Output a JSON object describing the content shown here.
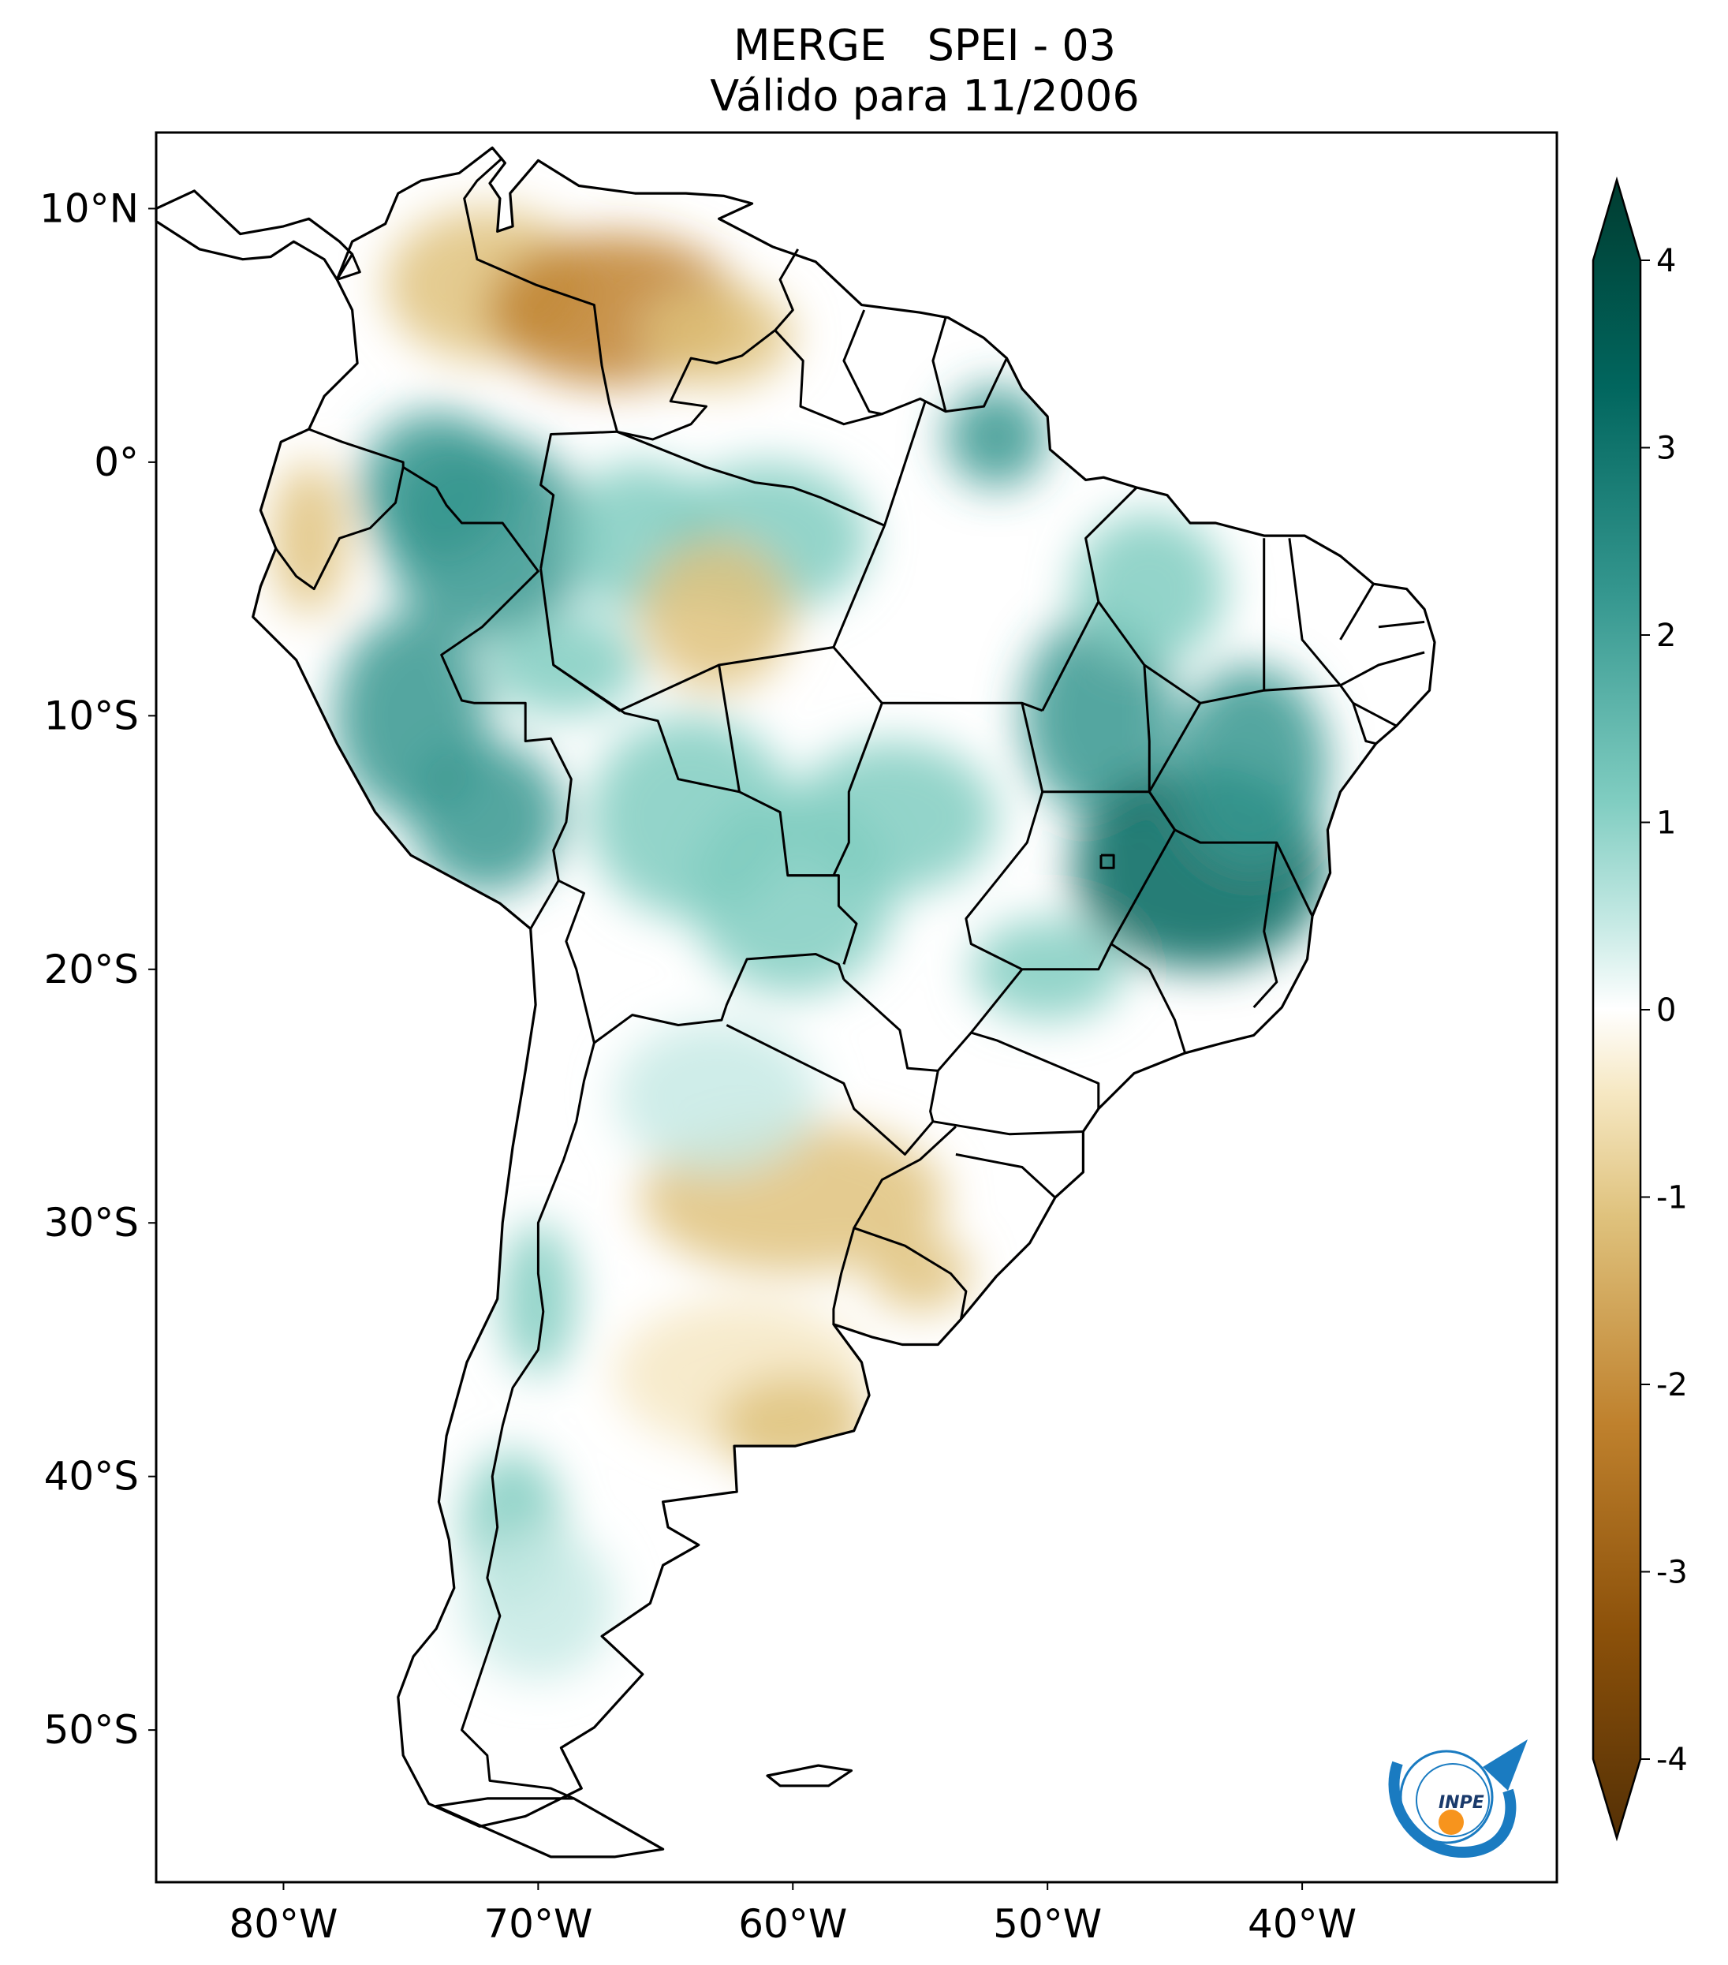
{
  "title": {
    "line1": "MERGE   SPEI - 03",
    "line2": "Válido para 11/2006"
  },
  "map": {
    "region": "South America",
    "lon_range": [
      -85,
      -30
    ],
    "lat_range": [
      -56,
      13
    ],
    "lat_ticks": [
      {
        "value": 10,
        "label": "10°N"
      },
      {
        "value": 0,
        "label": "0°"
      },
      {
        "value": -10,
        "label": "10°S"
      },
      {
        "value": -20,
        "label": "20°S"
      },
      {
        "value": -30,
        "label": "30°S"
      },
      {
        "value": -40,
        "label": "40°S"
      },
      {
        "value": -50,
        "label": "50°S"
      }
    ],
    "lon_ticks": [
      {
        "value": -80,
        "label": "80°W"
      },
      {
        "value": -70,
        "label": "70°W"
      },
      {
        "value": -60,
        "label": "60°W"
      },
      {
        "value": -50,
        "label": "50°W"
      },
      {
        "value": -40,
        "label": "40°W"
      }
    ]
  },
  "colorbar": {
    "min": -4,
    "max": 4,
    "ticks": [
      {
        "value": 4,
        "label": "4"
      },
      {
        "value": 3,
        "label": "3"
      },
      {
        "value": 2,
        "label": "2"
      },
      {
        "value": 1,
        "label": "1"
      },
      {
        "value": 0,
        "label": "0"
      },
      {
        "value": -1,
        "label": "-1"
      },
      {
        "value": -2,
        "label": "-2"
      },
      {
        "value": -3,
        "label": "-3"
      },
      {
        "value": -4,
        "label": "-4"
      }
    ],
    "colors": {
      "dry_extreme": "#543005",
      "dry": "#bf812d",
      "dry_light": "#f6e8c3",
      "neutral": "#ffffff",
      "wet_light": "#c7eae5",
      "wet": "#35978f",
      "wet_extreme": "#003c30"
    }
  },
  "logo": {
    "text": "INPE",
    "colors": {
      "blue": "#1a7bc1",
      "orange": "#f7941d"
    }
  }
}
